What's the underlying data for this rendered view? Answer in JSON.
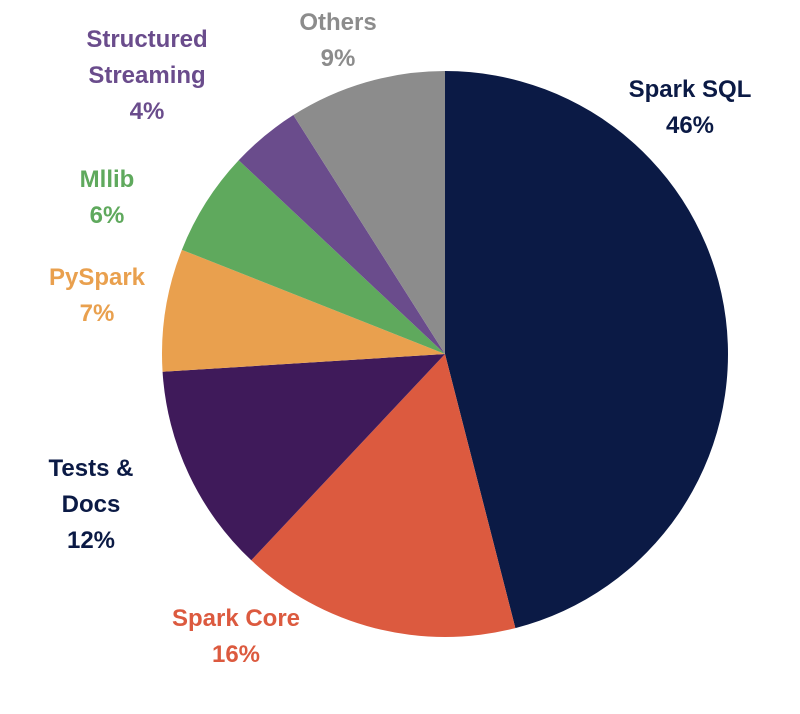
{
  "chart_data": {
    "type": "pie",
    "title": "",
    "slices": [
      {
        "name": "Spark SQL",
        "value": 46,
        "value_label": "46%",
        "color": "#0b1a45",
        "label_color": "#0b1a45"
      },
      {
        "name": "Spark Core",
        "value": 16,
        "value_label": "16%",
        "color": "#dc5a3f",
        "label_color": "#dc5a3f"
      },
      {
        "name": "Tests & Docs",
        "value": 12,
        "value_label": "12%",
        "color": "#3f1a5a",
        "label_color": "#0b1a45"
      },
      {
        "name": "PySpark",
        "value": 7,
        "value_label": "7%",
        "color": "#e9a04e",
        "label_color": "#e9a04e"
      },
      {
        "name": "Mllib",
        "value": 6,
        "value_label": "6%",
        "color": "#5fa95d",
        "label_color": "#5fa95d"
      },
      {
        "name": "Structured Streaming",
        "value": 4,
        "value_label": "4%",
        "color": "#6a4c8c",
        "label_color": "#6a4c8c"
      },
      {
        "name": "Others",
        "value": 9,
        "value_label": "9%",
        "color": "#8c8c8c",
        "label_color": "#8c8c8c"
      }
    ],
    "start_angle": "12 o'clock",
    "direction": "clockwise",
    "legend": "none"
  }
}
